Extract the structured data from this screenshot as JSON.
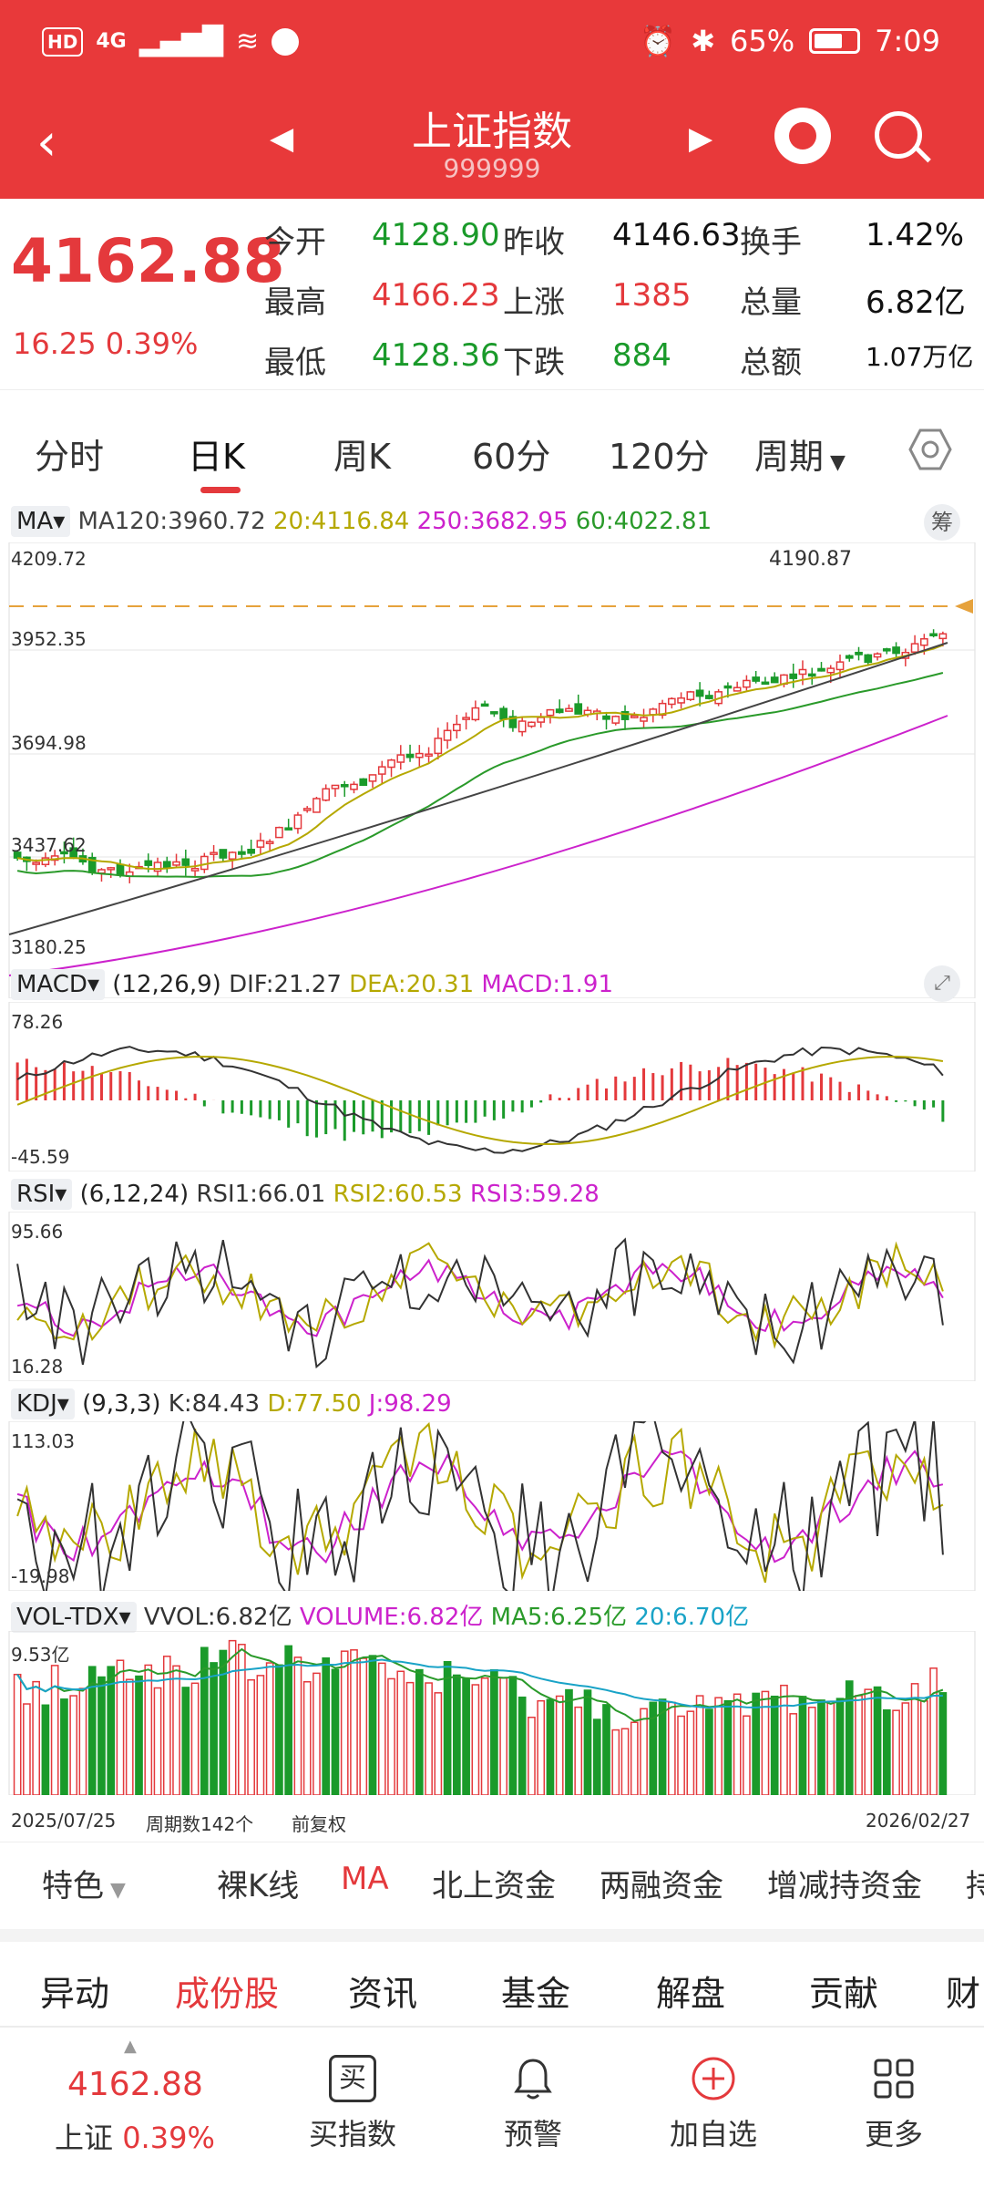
{
  "status_bar": {
    "left": [
      "HD",
      "4G"
    ],
    "battery": "65%",
    "time": "7:09"
  },
  "header": {
    "title": "上证指数",
    "code": "999999"
  },
  "quote": {
    "price": "4162.88",
    "change": "16.25 0.39%",
    "rows": [
      [
        {
          "label": "今开",
          "value": "4128.90",
          "color": "green"
        },
        {
          "label": "昨收",
          "value": "4146.63",
          "color": "black"
        },
        {
          "label": "换手",
          "value": "1.42%",
          "color": "black"
        }
      ],
      [
        {
          "label": "最高",
          "value": "4166.23",
          "color": "red"
        },
        {
          "label": "上涨",
          "value": "1385",
          "color": "red"
        },
        {
          "label": "总量",
          "value": "6.82亿",
          "color": "black"
        }
      ],
      [
        {
          "label": "最低",
          "value": "4128.36",
          "color": "green"
        },
        {
          "label": "下跌",
          "value": "884",
          "color": "green"
        },
        {
          "label": "总额",
          "value": "1.07万亿",
          "color": "black"
        }
      ]
    ]
  },
  "period_tabs": [
    "分时",
    "日K",
    "周K",
    "60分",
    "120分",
    "周期"
  ],
  "active_period": "日K",
  "panes": {
    "ma": {
      "button": "MA",
      "ma120": "MA120:3960.72",
      "ma20": "20:4116.84",
      "ma250": "250:3682.95",
      "ma60": "60:4022.81",
      "chip": "筹",
      "y_labels": [
        "4209.72",
        "3952.35",
        "3694.98",
        "3437.62",
        "3180.25"
      ],
      "high_marker": "4190.87"
    },
    "macd": {
      "button": "MACD",
      "params": "(12,26,9)",
      "dif": "DIF:21.27",
      "dea": "DEA:20.31",
      "macd": "MACD:1.91",
      "y_labels": [
        "78.26",
        "-45.59"
      ]
    },
    "rsi": {
      "button": "RSI",
      "params": "(6,12,24)",
      "rsi1": "RSI1:66.01",
      "rsi2": "RSI2:60.53",
      "rsi3": "RSI3:59.28",
      "y_labels": [
        "95.66",
        "16.28"
      ]
    },
    "kdj": {
      "button": "KDJ",
      "params": "(9,3,3)",
      "k": "K:84.43",
      "d": "D:77.50",
      "j": "J:98.29",
      "y_labels": [
        "113.03",
        "-19.98"
      ]
    },
    "vol": {
      "button": "VOL-TDX",
      "vvol": "VVOL:6.82亿",
      "volume": "VOLUME:6.82亿",
      "ma5": "MA5:6.25亿",
      "ma20": "20:6.70亿",
      "y_labels": [
        "9.53亿"
      ]
    }
  },
  "date_footer": {
    "start": "2025/07/25",
    "count": "周期数142个",
    "adj": "前复权",
    "end": "2026/02/27"
  },
  "tools": [
    "特色",
    "裸K线",
    "MA",
    "北上资金",
    "两融资金",
    "增减持资金",
    "持"
  ],
  "sub_tabs": [
    "异动",
    "成份股",
    "资讯",
    "基金",
    "解盘",
    "贡献",
    "财"
  ],
  "active_sub_tab": "成份股",
  "bottom_nav": {
    "price": "4162.88",
    "label": "上证",
    "pct": "0.39%",
    "items": [
      "买指数",
      "预警",
      "加自选",
      "更多"
    ],
    "buy_icon_char": "买"
  },
  "colors": {
    "header": "#e8393a",
    "up": "#e4393c",
    "down": "#1a9a2a",
    "ma5": "#333333",
    "ma20": "#b5a800",
    "ma60": "#2a9a2a",
    "ma120": "#444444",
    "ma250": "#cc22cc"
  }
}
